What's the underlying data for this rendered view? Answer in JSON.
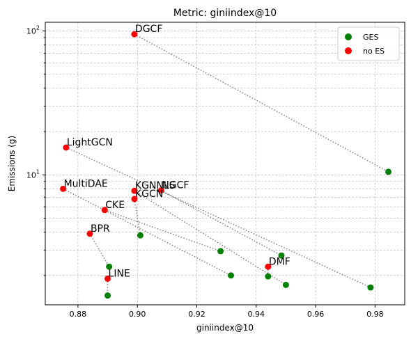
{
  "chart_data": {
    "type": "scatter",
    "title": "Metric: giniindex@10",
    "xlabel": "giniindex@10",
    "ylabel": "Emissions (g)",
    "xlim": [
      0.869,
      0.99
    ],
    "ylim": [
      1.25,
      115
    ],
    "yscale": "log",
    "x_ticks": [
      0.88,
      0.9,
      0.92,
      0.94,
      0.96,
      0.98
    ],
    "x_tick_labels": [
      "0.88",
      "0.90",
      "0.92",
      "0.94",
      "0.96",
      "0.98"
    ],
    "y_ticks": [
      10,
      100
    ],
    "grid": true,
    "legend_position": "top-right",
    "series": [
      {
        "name": "GES",
        "color": "#008000"
      },
      {
        "name": "no ES",
        "color": "#ff0000"
      }
    ],
    "pairs": [
      {
        "label": "DGCF",
        "noes": [
          0.899,
          95.0
        ],
        "ges": [
          0.9845,
          10.5
        ]
      },
      {
        "label": "LightGCN",
        "noes": [
          0.876,
          15.5
        ],
        "ges": [
          0.9785,
          1.65
        ]
      },
      {
        "label": "MultiDAE",
        "noes": [
          0.875,
          8.0
        ],
        "ges": [
          0.9315,
          2.0
        ]
      },
      {
        "label": "KGNNLS",
        "noes": [
          0.899,
          7.75
        ],
        "ges": [
          0.95,
          1.72
        ]
      },
      {
        "label": "NGCF",
        "noes": [
          0.908,
          7.8
        ],
        "ges": [
          0.9485,
          2.75
        ]
      },
      {
        "label": "KGCN",
        "noes": [
          0.899,
          6.8
        ],
        "ges": [
          0.901,
          3.8
        ]
      },
      {
        "label": "CKE",
        "noes": [
          0.889,
          5.7
        ],
        "ges": [
          0.928,
          2.95
        ]
      },
      {
        "label": "BPR",
        "noes": [
          0.884,
          3.9
        ],
        "ges": [
          0.8905,
          2.3
        ]
      },
      {
        "label": "DMF",
        "noes": [
          0.944,
          2.3
        ],
        "ges": [
          0.944,
          1.97
        ]
      },
      {
        "label": "LINE",
        "noes": [
          0.89,
          1.9
        ],
        "ges": [
          0.89,
          1.45
        ]
      }
    ]
  }
}
